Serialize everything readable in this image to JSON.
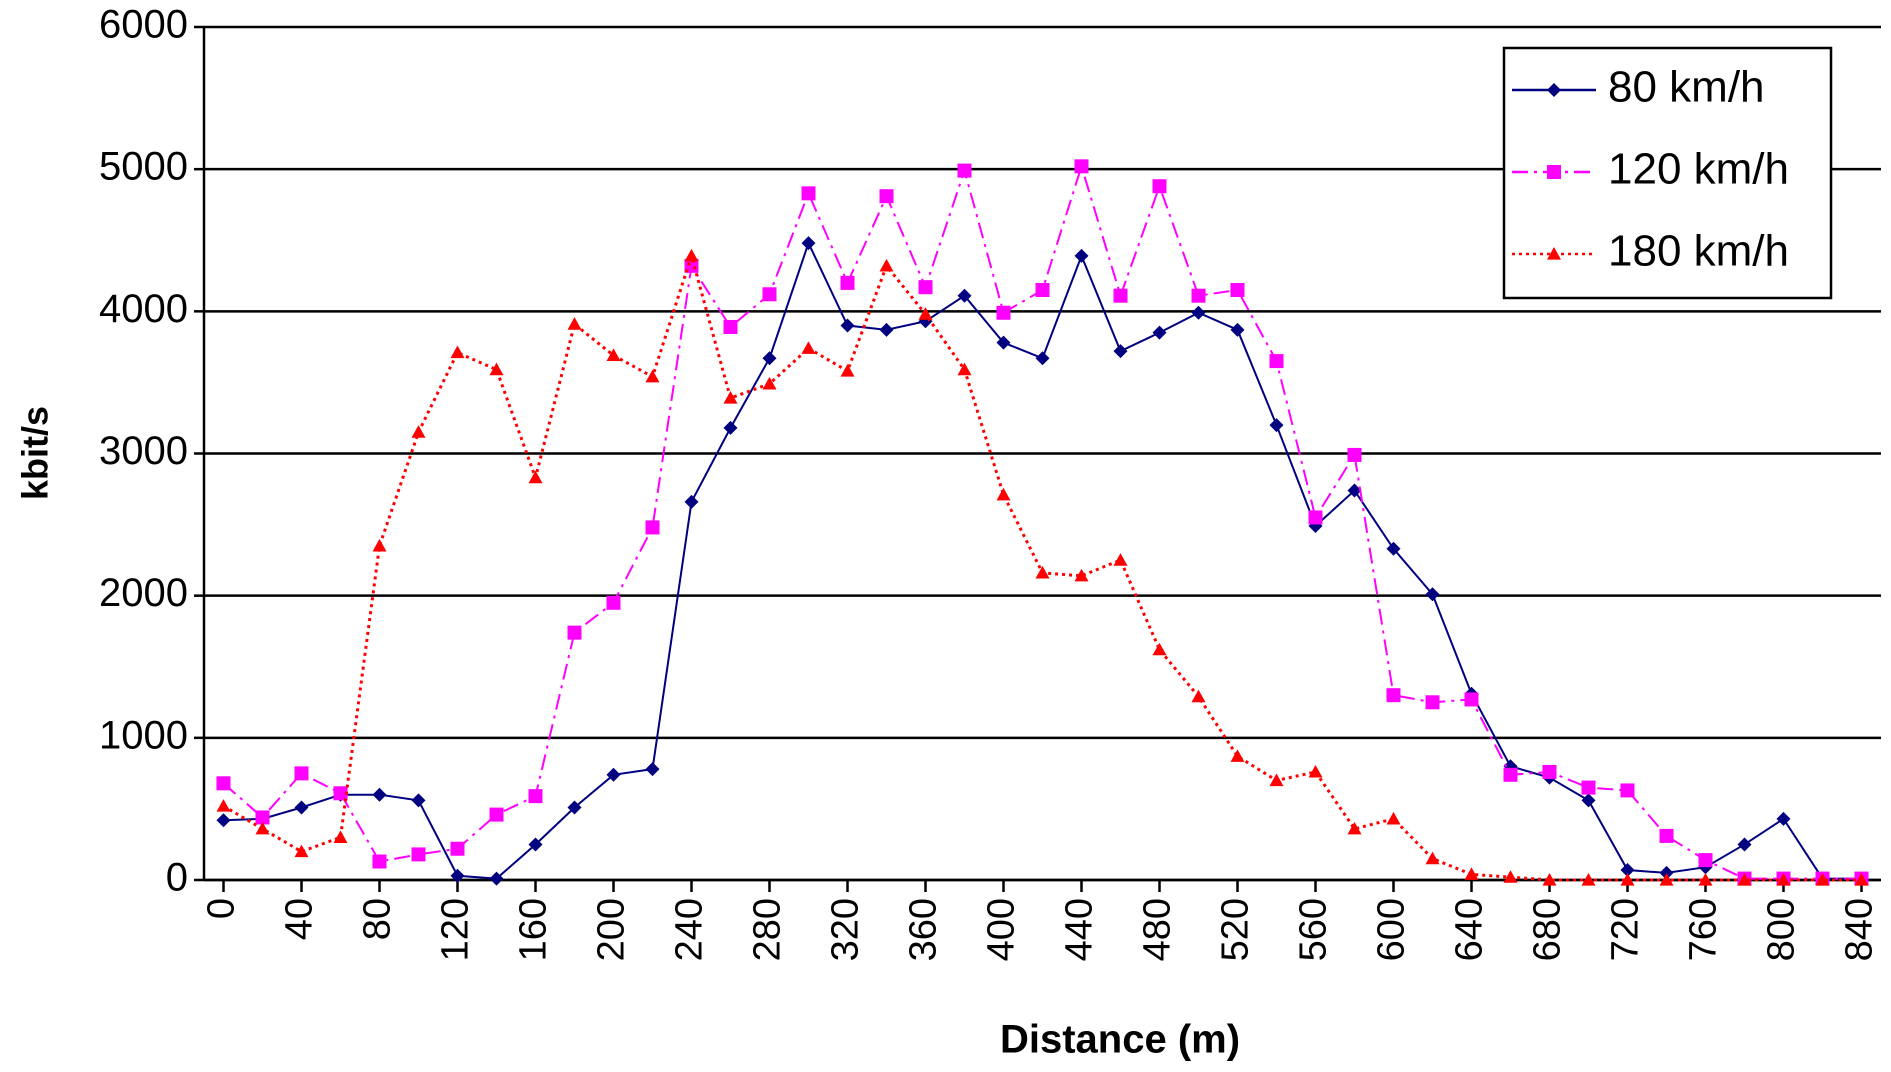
{
  "chart_data": {
    "type": "line",
    "x_label": "Distance (m)",
    "y_label": "kbit/s",
    "x": [
      0,
      20,
      40,
      60,
      80,
      100,
      120,
      140,
      160,
      180,
      200,
      220,
      240,
      260,
      280,
      300,
      320,
      340,
      360,
      380,
      400,
      420,
      440,
      460,
      480,
      500,
      520,
      540,
      560,
      580,
      600,
      620,
      640,
      660,
      680,
      700,
      720,
      740,
      760,
      780,
      800,
      820,
      840
    ],
    "series": [
      {
        "name": "80 km/h",
        "color": "#000080",
        "marker": "diamond",
        "dash": "solid",
        "values": [
          420,
          430,
          510,
          600,
          600,
          560,
          30,
          10,
          250,
          510,
          740,
          780,
          2660,
          3180,
          3670,
          4480,
          3900,
          3870,
          3930,
          4110,
          3780,
          3670,
          4390,
          3720,
          3850,
          3990,
          3870,
          3200,
          2490,
          2740,
          2330,
          2010,
          1310,
          800,
          720,
          560,
          70,
          50,
          90,
          250,
          430,
          10,
          10
        ]
      },
      {
        "name": "120 km/h",
        "color": "#ff00ff",
        "marker": "square",
        "dash": "dashdot",
        "values": [
          680,
          440,
          750,
          610,
          130,
          180,
          220,
          460,
          590,
          1740,
          1950,
          2480,
          4320,
          3890,
          4120,
          4830,
          4200,
          4810,
          4170,
          4990,
          3990,
          4150,
          5020,
          4110,
          4880,
          4110,
          4150,
          3650,
          2550,
          2990,
          1300,
          1250,
          1270,
          740,
          760,
          650,
          630,
          310,
          140,
          10,
          10,
          10,
          10
        ]
      },
      {
        "name": "180 km/h",
        "color": "#ff0000",
        "marker": "triangle",
        "dash": "dotted",
        "values": [
          520,
          360,
          200,
          300,
          2350,
          3150,
          3710,
          3590,
          2830,
          3910,
          3690,
          3540,
          4390,
          3390,
          3490,
          3740,
          3580,
          4320,
          3980,
          3590,
          2710,
          2160,
          2140,
          2250,
          1620,
          1290,
          870,
          700,
          760,
          360,
          430,
          150,
          40,
          20,
          0,
          0,
          0,
          0,
          0,
          0,
          0,
          0,
          0
        ]
      }
    ],
    "xlim": [
      -10,
      850
    ],
    "xticks": [
      0,
      40,
      80,
      120,
      160,
      200,
      240,
      280,
      320,
      360,
      400,
      440,
      480,
      520,
      560,
      600,
      640,
      680,
      720,
      760,
      800,
      840
    ],
    "ylim": [
      0,
      6000
    ],
    "yticks": [
      0,
      1000,
      2000,
      3000,
      4000,
      5000,
      6000
    ],
    "grid": true,
    "legend": "top-right"
  }
}
